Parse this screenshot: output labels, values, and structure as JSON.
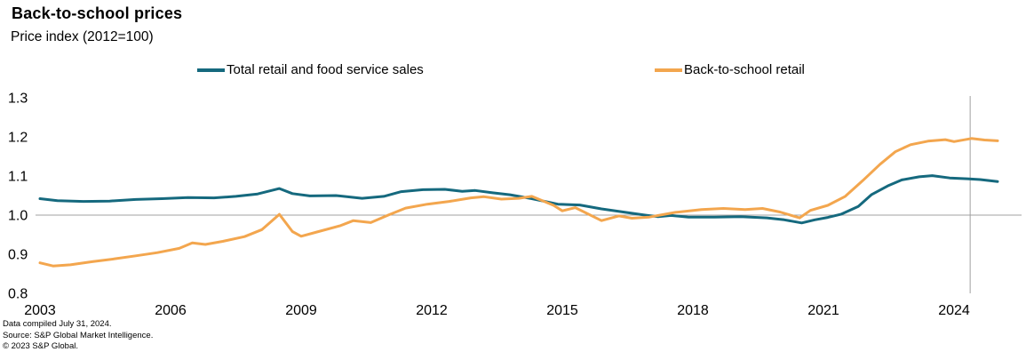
{
  "header": {
    "title": "Back-to-school prices",
    "subtitle": "Price index (2012=100)"
  },
  "legend": {
    "items": [
      {
        "label": "Total retail and food service sales",
        "color": "#15697e"
      },
      {
        "label": "Back-to-school retail",
        "color": "#f3a64e"
      }
    ]
  },
  "footer": {
    "line1": "Data compiled July 31, 2024.",
    "line2": "Source: S&P Global Market Intelligence.",
    "line3": "© 2023 S&P Global."
  },
  "chart_data": {
    "type": "line",
    "title": "Back-to-school prices",
    "subtitle": "Price index (2012=100)",
    "xlabel": "",
    "ylabel": "Price index (2012=100)",
    "xlim": [
      2003,
      2025.3
    ],
    "ylim": [
      0.8,
      1.3
    ],
    "x_ticks": [
      2003,
      2006,
      2009,
      2012,
      2015,
      2018,
      2021,
      2024
    ],
    "y_ticks": [
      "1.3",
      "1.2",
      "1.1",
      "1.0",
      "0.9",
      "0.8"
    ],
    "y_tick_values": [
      1.3,
      1.2,
      1.1,
      1.0,
      0.9,
      0.8
    ],
    "grid": "single horizontal baseline at 1.0; vertical marker line at 2024.37",
    "baseline_value": 1.0,
    "vline_x": 2024.37,
    "legend_position": "top",
    "grid_color": "#a0a0a0",
    "series": [
      {
        "name": "Total retail and food service sales",
        "color": "#15697e",
        "points": [
          [
            2003.0,
            1.042
          ],
          [
            2003.4,
            1.037
          ],
          [
            2004.0,
            1.035
          ],
          [
            2004.6,
            1.036
          ],
          [
            2005.2,
            1.04
          ],
          [
            2005.8,
            1.042
          ],
          [
            2006.4,
            1.045
          ],
          [
            2007.0,
            1.044
          ],
          [
            2007.5,
            1.048
          ],
          [
            2008.0,
            1.054
          ],
          [
            2008.5,
            1.068
          ],
          [
            2008.8,
            1.055
          ],
          [
            2009.2,
            1.049
          ],
          [
            2009.8,
            1.05
          ],
          [
            2010.4,
            1.043
          ],
          [
            2010.9,
            1.048
          ],
          [
            2011.3,
            1.06
          ],
          [
            2011.8,
            1.065
          ],
          [
            2012.3,
            1.066
          ],
          [
            2012.7,
            1.061
          ],
          [
            2013.0,
            1.063
          ],
          [
            2013.4,
            1.057
          ],
          [
            2013.8,
            1.052
          ],
          [
            2014.3,
            1.042
          ],
          [
            2014.9,
            1.028
          ],
          [
            2015.4,
            1.026
          ],
          [
            2015.9,
            1.016
          ],
          [
            2016.4,
            1.008
          ],
          [
            2016.9,
            1.0
          ],
          [
            2017.2,
            0.996
          ],
          [
            2017.5,
            0.999
          ],
          [
            2017.9,
            0.995
          ],
          [
            2018.5,
            0.995
          ],
          [
            2019.1,
            0.996
          ],
          [
            2019.7,
            0.993
          ],
          [
            2020.1,
            0.988
          ],
          [
            2020.5,
            0.98
          ],
          [
            2020.8,
            0.988
          ],
          [
            2021.1,
            0.994
          ],
          [
            2021.4,
            1.002
          ],
          [
            2021.8,
            1.022
          ],
          [
            2022.1,
            1.052
          ],
          [
            2022.5,
            1.076
          ],
          [
            2022.8,
            1.09
          ],
          [
            2023.2,
            1.098
          ],
          [
            2023.5,
            1.101
          ],
          [
            2023.9,
            1.095
          ],
          [
            2024.3,
            1.093
          ],
          [
            2024.6,
            1.091
          ],
          [
            2025.0,
            1.086
          ]
        ]
      },
      {
        "name": "Back-to-school retail",
        "color": "#f3a64e",
        "points": [
          [
            2003.0,
            0.878
          ],
          [
            2003.3,
            0.87
          ],
          [
            2003.7,
            0.873
          ],
          [
            2004.2,
            0.881
          ],
          [
            2004.7,
            0.888
          ],
          [
            2005.2,
            0.896
          ],
          [
            2005.7,
            0.904
          ],
          [
            2006.2,
            0.915
          ],
          [
            2006.5,
            0.929
          ],
          [
            2006.8,
            0.925
          ],
          [
            2007.2,
            0.933
          ],
          [
            2007.7,
            0.945
          ],
          [
            2008.1,
            0.963
          ],
          [
            2008.5,
            1.002
          ],
          [
            2008.8,
            0.958
          ],
          [
            2009.0,
            0.946
          ],
          [
            2009.4,
            0.958
          ],
          [
            2009.9,
            0.973
          ],
          [
            2010.2,
            0.986
          ],
          [
            2010.6,
            0.981
          ],
          [
            2011.0,
            1.0
          ],
          [
            2011.4,
            1.018
          ],
          [
            2011.9,
            1.028
          ],
          [
            2012.4,
            1.035
          ],
          [
            2012.9,
            1.044
          ],
          [
            2013.2,
            1.047
          ],
          [
            2013.6,
            1.041
          ],
          [
            2014.0,
            1.043
          ],
          [
            2014.3,
            1.048
          ],
          [
            2014.8,
            1.025
          ],
          [
            2015.0,
            1.011
          ],
          [
            2015.3,
            1.019
          ],
          [
            2015.9,
            0.986
          ],
          [
            2016.3,
            0.998
          ],
          [
            2016.6,
            0.992
          ],
          [
            2017.0,
            0.995
          ],
          [
            2017.6,
            1.007
          ],
          [
            2018.2,
            1.014
          ],
          [
            2018.7,
            1.017
          ],
          [
            2019.2,
            1.014
          ],
          [
            2019.6,
            1.017
          ],
          [
            2020.0,
            1.008
          ],
          [
            2020.45,
            0.993
          ],
          [
            2020.7,
            1.012
          ],
          [
            2021.1,
            1.025
          ],
          [
            2021.5,
            1.048
          ],
          [
            2021.9,
            1.088
          ],
          [
            2022.3,
            1.13
          ],
          [
            2022.65,
            1.162
          ],
          [
            2023.0,
            1.18
          ],
          [
            2023.4,
            1.189
          ],
          [
            2023.8,
            1.193
          ],
          [
            2024.0,
            1.188
          ],
          [
            2024.4,
            1.196
          ],
          [
            2024.7,
            1.192
          ],
          [
            2025.0,
            1.19
          ]
        ]
      }
    ]
  }
}
